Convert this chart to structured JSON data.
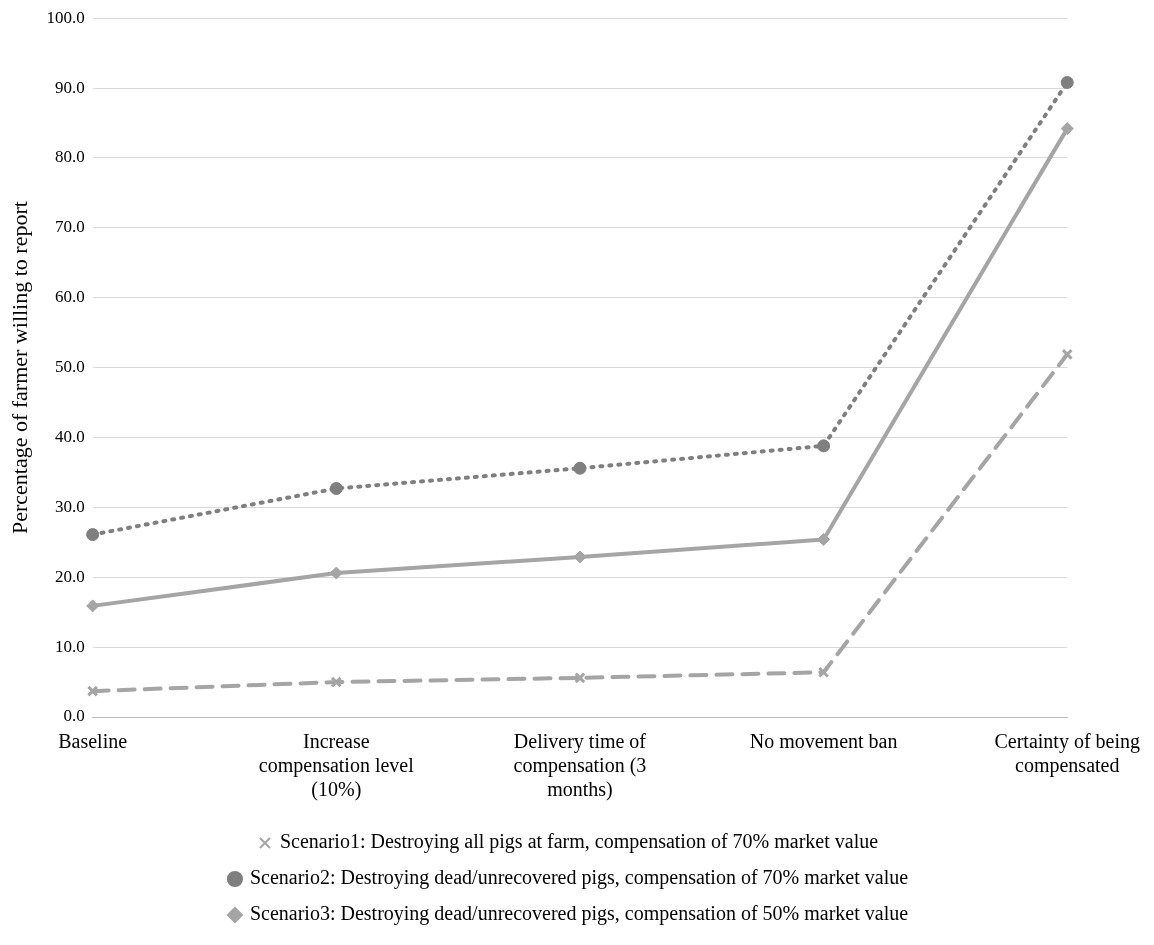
{
  "chart_data": {
    "type": "line",
    "ylabel": "Percentage of farmer willing to report",
    "categories": [
      "Baseline",
      "Increase compensation level (10%)",
      "Delivery time of compensation (3 months)",
      "No movement ban",
      "Certainty of being compensated"
    ],
    "series": [
      {
        "name": "Scenario1: Destroying all pigs at farm, compensation of 70% market value",
        "color": "#a5a5a5",
        "marker": "cross",
        "line_style": "dashed",
        "values": [
          3.7,
          5.0,
          5.6,
          6.4,
          51.9
        ]
      },
      {
        "name": "Scenario2: Destroying dead/unrecovered pigs, compensation of 70% market value",
        "color": "#7f7f7f",
        "marker": "circle",
        "line_style": "dotted",
        "values": [
          26.1,
          32.7,
          35.6,
          38.8,
          90.8
        ]
      },
      {
        "name": "Scenario3: Destroying dead/unrecovered pigs, compensation of 50% market value",
        "color": "#a5a5a5",
        "marker": "diamond",
        "line_style": "solid",
        "values": [
          15.9,
          20.6,
          22.9,
          25.4,
          84.2
        ]
      }
    ],
    "ylim": [
      0,
      100
    ],
    "yticks": [
      {
        "value": 0,
        "label": "0.0"
      },
      {
        "value": 10,
        "label": "10.0"
      },
      {
        "value": 20,
        "label": "20.0"
      },
      {
        "value": 30,
        "label": "30.0"
      },
      {
        "value": 40,
        "label": "40.0"
      },
      {
        "value": 50,
        "label": "50.0"
      },
      {
        "value": 60,
        "label": "60.0"
      },
      {
        "value": 70,
        "label": "70.0"
      },
      {
        "value": 80,
        "label": "80.0"
      },
      {
        "value": 90,
        "label": "90.0"
      },
      {
        "value": 100,
        "label": "100.0"
      }
    ],
    "grid": "y",
    "legend": "bottom"
  }
}
